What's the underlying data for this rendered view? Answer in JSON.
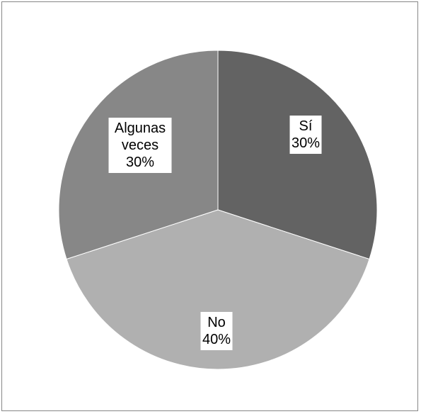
{
  "chart_data": {
    "type": "pie",
    "title": "",
    "slices": [
      {
        "label": "Sí",
        "value": 30,
        "display": "30%",
        "color": "#636363"
      },
      {
        "label": "No",
        "value": 40,
        "display": "40%",
        "color": "#b0b0b0"
      },
      {
        "label": "Algunas veces",
        "value": 30,
        "display": "30%",
        "color": "#878787"
      }
    ],
    "legend": "none",
    "start_angle_deg": 0,
    "direction": "clockwise"
  }
}
